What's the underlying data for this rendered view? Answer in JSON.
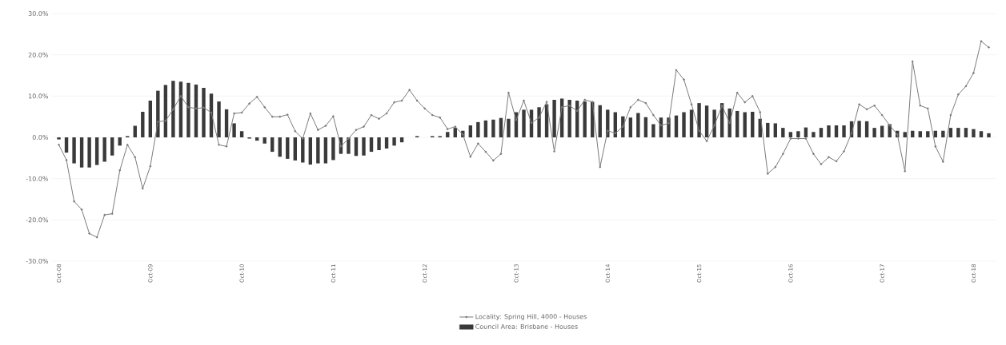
{
  "chart_data": {
    "type": "bar",
    "categories": [
      "Oct-08",
      null,
      null,
      null,
      null,
      null,
      null,
      null,
      null,
      null,
      null,
      null,
      "Oct-09",
      null,
      null,
      null,
      null,
      null,
      null,
      null,
      null,
      null,
      null,
      null,
      "Oct-10",
      null,
      null,
      null,
      null,
      null,
      null,
      null,
      null,
      null,
      null,
      null,
      "Oct-11",
      null,
      null,
      null,
      null,
      null,
      null,
      null,
      null,
      null,
      null,
      null,
      "Oct-12",
      null,
      null,
      null,
      null,
      null,
      null,
      null,
      null,
      null,
      null,
      null,
      "Oct-13",
      null,
      null,
      null,
      null,
      null,
      null,
      null,
      null,
      null,
      null,
      null,
      "Oct-14",
      null,
      null,
      null,
      null,
      null,
      null,
      null,
      null,
      null,
      null,
      null,
      "Oct-15",
      null,
      null,
      null,
      null,
      null,
      null,
      null,
      null,
      null,
      null,
      null,
      "Oct-16",
      null,
      null,
      null,
      null,
      null,
      null,
      null,
      null,
      null,
      null,
      null,
      "Oct-17",
      null,
      null,
      null,
      null,
      null,
      null,
      null,
      null,
      null,
      null,
      null,
      "Oct-18",
      null,
      null
    ],
    "series": [
      {
        "name": "Locality: Spring Hill, 4000 - Houses",
        "type": "line",
        "color": "#7a7a7a",
        "marker": "circle",
        "values": [
          -1.8,
          -5.5,
          -15.5,
          -17.5,
          -23.3,
          -24.2,
          -18.8,
          -18.5,
          -8.0,
          -1.8,
          -4.8,
          -12.4,
          -7.0,
          3.8,
          4.0,
          6.8,
          10.0,
          7.3,
          7.0,
          7.2,
          6.0,
          -1.8,
          -2.2,
          5.8,
          6.0,
          8.2,
          9.8,
          7.3,
          5.0,
          5.0,
          5.5,
          1.5,
          -0.3,
          5.8,
          1.8,
          2.8,
          5.1,
          -2.2,
          -0.3,
          1.8,
          2.6,
          5.4,
          4.5,
          5.8,
          8.5,
          8.9,
          11.5,
          8.9,
          7.0,
          5.4,
          4.8,
          2.0,
          2.6,
          0.7,
          -4.7,
          -1.5,
          -3.5,
          -5.6,
          -4.0,
          10.8,
          4.2,
          8.9,
          3.5,
          4.8,
          8.6,
          -3.4,
          7.3,
          7.7,
          6.4,
          9.1,
          8.6,
          -7.2,
          1.6,
          1.0,
          2.6,
          7.3,
          9.1,
          8.3,
          5.4,
          2.9,
          3.4,
          16.3,
          14.0,
          8.0,
          1.6,
          -0.9,
          2.9,
          7.7,
          3.5,
          10.8,
          8.5,
          10.0,
          6.1,
          -8.8,
          -7.2,
          -4.0,
          -0.3,
          -0.3,
          -0.3,
          -4.0,
          -6.5,
          -4.8,
          -5.8,
          -3.4,
          1.0,
          8.0,
          6.8,
          7.7,
          5.4,
          2.9,
          0.7,
          -8.2,
          18.4,
          7.7,
          7.0,
          -2.2,
          -5.9,
          5.4,
          10.4,
          12.4,
          15.6,
          23.3,
          21.8
        ]
      },
      {
        "name": "Council Area: Brisbane - Houses",
        "color": "#3a3a3a",
        "values": [
          -0.5,
          -3.7,
          -6.3,
          -7.3,
          -7.3,
          -6.7,
          -5.9,
          -4.4,
          -2.0,
          0.3,
          2.8,
          6.2,
          8.9,
          11.3,
          12.7,
          13.7,
          13.5,
          13.2,
          12.8,
          12.0,
          10.6,
          8.7,
          6.8,
          3.4,
          1.5,
          -0.3,
          -0.8,
          -1.5,
          -3.5,
          -4.7,
          -5.2,
          -5.6,
          -6.1,
          -6.6,
          -6.3,
          -6.3,
          -5.5,
          -4.0,
          -4.0,
          -4.5,
          -4.4,
          -3.5,
          -3.1,
          -2.7,
          -2.0,
          -1.2,
          null,
          0.3,
          null,
          0.3,
          0.3,
          1.3,
          2.3,
          1.6,
          2.9,
          3.7,
          4.1,
          4.3,
          4.7,
          4.5,
          6.1,
          6.7,
          6.7,
          7.3,
          8.0,
          9.1,
          9.4,
          9.1,
          8.9,
          8.7,
          8.6,
          7.8,
          6.7,
          6.1,
          5.1,
          4.8,
          5.9,
          4.9,
          3.2,
          4.8,
          4.8,
          5.3,
          6.1,
          6.7,
          8.3,
          7.7,
          6.7,
          8.3,
          7.0,
          6.4,
          6.1,
          6.2,
          4.5,
          3.5,
          3.4,
          2.3,
          1.3,
          1.5,
          2.4,
          1.3,
          2.3,
          2.9,
          2.9,
          2.9,
          3.9,
          4.0,
          3.9,
          2.3,
          2.8,
          3.2,
          1.6,
          1.3,
          1.6,
          1.5,
          1.5,
          1.6,
          1.6,
          2.3,
          2.3,
          2.3,
          2.0,
          1.5,
          1.0
        ]
      }
    ],
    "ylim": [
      -30,
      30
    ],
    "yticks": [
      {
        "value": -30,
        "label": "-30.0%"
      },
      {
        "value": -20,
        "label": "-20.0%"
      },
      {
        "value": -10,
        "label": "-10.0%"
      },
      {
        "value": 0,
        "label": "0.0%"
      },
      {
        "value": 10,
        "label": "10.0%"
      },
      {
        "value": 20,
        "label": "20.0%"
      },
      {
        "value": 30,
        "label": "30.0%"
      }
    ],
    "grid": "y",
    "legend": "bottom"
  }
}
